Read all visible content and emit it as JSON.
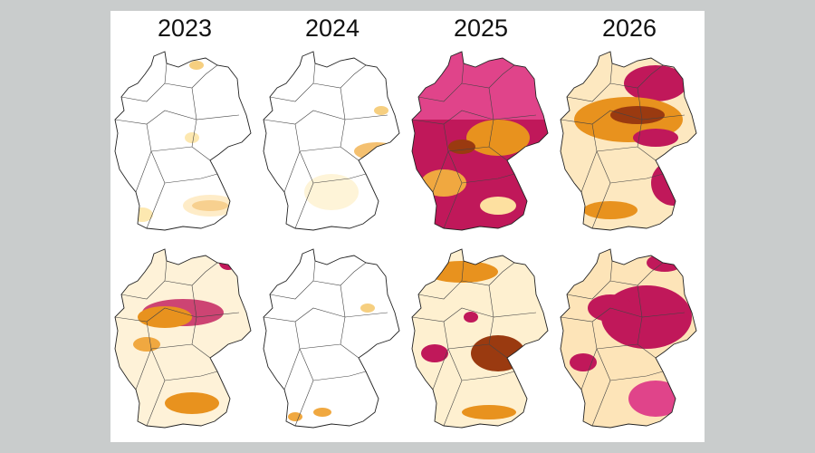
{
  "headers": [
    "2023",
    "2024",
    "2025",
    "2026"
  ]
}
